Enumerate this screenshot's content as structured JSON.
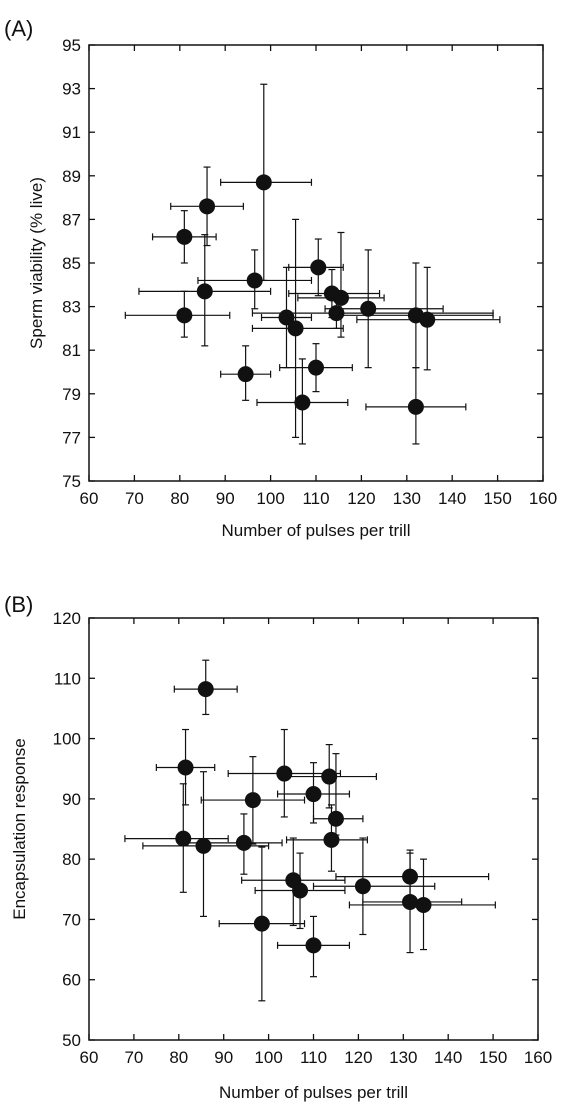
{
  "chart_data": [
    {
      "panel_label": "(A)",
      "type": "scatter",
      "xlabel": "Number of pulses per trill",
      "ylabel": "Sperm viability (% live)",
      "xlim": [
        60,
        160
      ],
      "ylim": [
        75,
        95
      ],
      "xticks": [
        60,
        70,
        80,
        90,
        100,
        110,
        120,
        130,
        140,
        150,
        160
      ],
      "yticks": [
        75,
        77,
        79,
        81,
        83,
        85,
        87,
        89,
        91,
        93,
        95
      ],
      "grid": false,
      "points": [
        {
          "x": 98.5,
          "y": 88.7,
          "xerr": [
            89,
            109
          ],
          "yerr": [
            84.2,
            93.2
          ]
        },
        {
          "x": 86,
          "y": 87.6,
          "xerr": [
            78,
            94
          ],
          "yerr": [
            85.8,
            89.4
          ]
        },
        {
          "x": 81,
          "y": 86.2,
          "xerr": [
            74,
            88
          ],
          "yerr": [
            85.0,
            87.4
          ]
        },
        {
          "x": 110.5,
          "y": 84.8,
          "xerr": [
            104,
            116
          ],
          "yerr": [
            83.5,
            86.1
          ]
        },
        {
          "x": 96.5,
          "y": 84.2,
          "xerr": [
            84,
            109
          ],
          "yerr": [
            82.9,
            85.6
          ]
        },
        {
          "x": 85.5,
          "y": 83.7,
          "xerr": [
            71,
            100
          ],
          "yerr": [
            81.2,
            86.3
          ]
        },
        {
          "x": 113.5,
          "y": 83.6,
          "xerr": [
            104,
            124
          ],
          "yerr": [
            82.5,
            84.7
          ]
        },
        {
          "x": 115.5,
          "y": 83.4,
          "xerr": [
            106,
            125
          ],
          "yerr": [
            81.6,
            86.4
          ]
        },
        {
          "x": 121.5,
          "y": 82.9,
          "xerr": [
            112,
            138
          ],
          "yerr": [
            80.2,
            85.6
          ]
        },
        {
          "x": 114.5,
          "y": 82.7,
          "xerr": [
            96,
            149
          ],
          "yerr": [
            82.0,
            83.4
          ]
        },
        {
          "x": 81,
          "y": 82.6,
          "xerr": [
            68,
            91
          ],
          "yerr": [
            81.6,
            83.7
          ]
        },
        {
          "x": 132,
          "y": 82.6,
          "xerr": [
            115,
            149
          ],
          "yerr": [
            80.2,
            85.0
          ]
        },
        {
          "x": 134.5,
          "y": 82.4,
          "xerr": [
            119,
            150.5
          ],
          "yerr": [
            80.1,
            84.8
          ]
        },
        {
          "x": 103.5,
          "y": 82.5,
          "xerr": [
            98,
            109
          ],
          "yerr": [
            80.2,
            84.8
          ]
        },
        {
          "x": 105.5,
          "y": 82.0,
          "xerr": [
            96,
            116
          ],
          "yerr": [
            77.0,
            87.0
          ]
        },
        {
          "x": 110,
          "y": 80.2,
          "xerr": [
            102,
            118
          ],
          "yerr": [
            79.1,
            81.3
          ]
        },
        {
          "x": 94.5,
          "y": 79.9,
          "xerr": [
            89,
            100
          ],
          "yerr": [
            78.7,
            81.2
          ]
        },
        {
          "x": 107,
          "y": 78.6,
          "xerr": [
            97,
            117
          ],
          "yerr": [
            76.7,
            80.6
          ]
        },
        {
          "x": 132,
          "y": 78.4,
          "xerr": [
            121,
            143
          ],
          "yerr": [
            76.7,
            80.2
          ]
        }
      ]
    },
    {
      "panel_label": "(B)",
      "type": "scatter",
      "xlabel": "Number of pulses per trill",
      "ylabel": "Encapsulation response",
      "xlim": [
        60,
        160
      ],
      "ylim": [
        50,
        120
      ],
      "xticks": [
        60,
        70,
        80,
        90,
        100,
        110,
        120,
        130,
        140,
        150,
        160
      ],
      "yticks": [
        50,
        60,
        70,
        80,
        90,
        100,
        110,
        120
      ],
      "grid": false,
      "points": [
        {
          "x": 86,
          "y": 108.2,
          "xerr": [
            79,
            93
          ],
          "yerr": [
            104,
            113
          ]
        },
        {
          "x": 81.5,
          "y": 95.2,
          "xerr": [
            75,
            88
          ],
          "yerr": [
            89,
            101.5
          ]
        },
        {
          "x": 103.5,
          "y": 94.2,
          "xerr": [
            91,
            116
          ],
          "yerr": [
            87,
            101.5
          ]
        },
        {
          "x": 113.5,
          "y": 93.7,
          "xerr": [
            103,
            124
          ],
          "yerr": [
            88.5,
            99
          ]
        },
        {
          "x": 110,
          "y": 90.8,
          "xerr": [
            102,
            118
          ],
          "yerr": [
            86,
            96
          ]
        },
        {
          "x": 96.5,
          "y": 89.8,
          "xerr": [
            85,
            108
          ],
          "yerr": [
            82.5,
            97
          ]
        },
        {
          "x": 115,
          "y": 86.7,
          "xerr": [
            110,
            121
          ],
          "yerr": [
            84,
            97.5
          ]
        },
        {
          "x": 81,
          "y": 83.4,
          "xerr": [
            68,
            91
          ],
          "yerr": [
            74.5,
            92.5
          ]
        },
        {
          "x": 114,
          "y": 83.2,
          "xerr": [
            104,
            122
          ],
          "yerr": [
            78,
            89
          ]
        },
        {
          "x": 94.5,
          "y": 82.7,
          "xerr": [
            82,
            103
          ],
          "yerr": [
            77.5,
            87.5
          ]
        },
        {
          "x": 85.5,
          "y": 82.2,
          "xerr": [
            72,
            100
          ],
          "yerr": [
            70.5,
            94.5
          ]
        },
        {
          "x": 105.5,
          "y": 76.5,
          "xerr": [
            94,
            117
          ],
          "yerr": [
            69,
            83.5
          ]
        },
        {
          "x": 121,
          "y": 75.5,
          "xerr": [
            110,
            137
          ],
          "yerr": [
            67.5,
            83.5
          ]
        },
        {
          "x": 107,
          "y": 74.8,
          "xerr": [
            97,
            117
          ],
          "yerr": [
            68.5,
            81
          ]
        },
        {
          "x": 131.5,
          "y": 77.1,
          "xerr": [
            115,
            149
          ],
          "yerr": [
            73,
            81.5
          ]
        },
        {
          "x": 131.5,
          "y": 72.9,
          "xerr": [
            121,
            143
          ],
          "yerr": [
            64.5,
            81
          ]
        },
        {
          "x": 134.5,
          "y": 72.4,
          "xerr": [
            118,
            150.5
          ],
          "yerr": [
            65,
            80
          ]
        },
        {
          "x": 98.5,
          "y": 69.3,
          "xerr": [
            89,
            108
          ],
          "yerr": [
            56.5,
            82
          ]
        },
        {
          "x": 110,
          "y": 65.7,
          "xerr": [
            102,
            118
          ],
          "yerr": [
            60.5,
            70.5
          ]
        }
      ]
    }
  ]
}
